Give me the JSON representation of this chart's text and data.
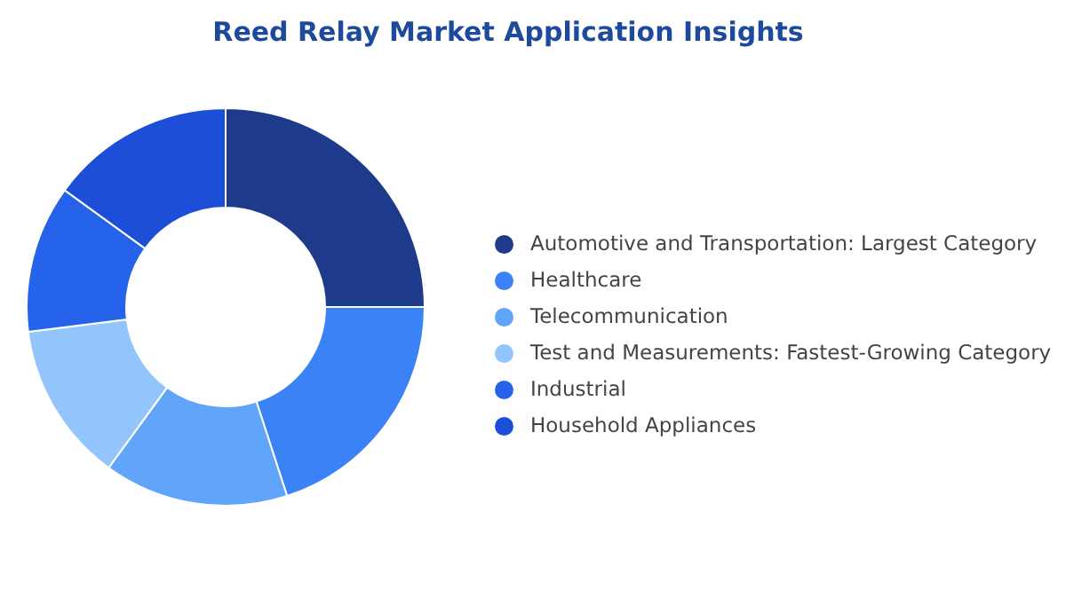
{
  "chart_data": {
    "type": "donut",
    "title": "Reed Relay Market Application Insights",
    "categories": [
      "Automotive and Transportation:  Largest Category",
      "Healthcare",
      "Telecommunication",
      "Test and Measurements:  Fastest-Growing Category",
      "Industrial",
      "Household Appliances"
    ],
    "values": [
      25,
      20,
      15,
      13,
      12,
      15
    ],
    "colors": [
      "#1e3a8a",
      "#3b82f6",
      "#60a5fa",
      "#93c5fd",
      "#2563eb",
      "#1d4ed8"
    ],
    "legend": "right"
  }
}
